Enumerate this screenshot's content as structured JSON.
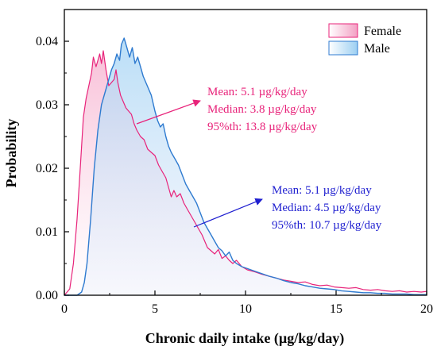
{
  "chart_data": {
    "type": "area",
    "xlabel": "Chronic daily intake (µg/kg/day)",
    "ylabel": "Probability",
    "xlim": [
      0,
      20
    ],
    "ylim": [
      0,
      0.045
    ],
    "x_ticks": [
      0,
      5,
      10,
      15,
      20
    ],
    "y_ticks": [
      0.0,
      0.01,
      0.02,
      0.03,
      0.04
    ],
    "x_tick_labels": [
      "0",
      "5",
      "10",
      "15",
      "20"
    ],
    "y_tick_labels": [
      "0.00",
      "0.01",
      "0.02",
      "0.03",
      "0.04"
    ],
    "grid": false,
    "legend_position": "top-right",
    "series": [
      {
        "name": "Female",
        "color": "#e8237a",
        "fill": "#f9c8de",
        "points": [
          [
            0.0,
            0.0
          ],
          [
            0.3,
            0.001
          ],
          [
            0.5,
            0.005
          ],
          [
            0.7,
            0.012
          ],
          [
            0.9,
            0.021
          ],
          [
            1.05,
            0.028
          ],
          [
            1.2,
            0.031
          ],
          [
            1.35,
            0.033
          ],
          [
            1.5,
            0.035
          ],
          [
            1.6,
            0.0375
          ],
          [
            1.75,
            0.036
          ],
          [
            1.85,
            0.037
          ],
          [
            1.95,
            0.038
          ],
          [
            2.05,
            0.0365
          ],
          [
            2.15,
            0.0385
          ],
          [
            2.3,
            0.0355
          ],
          [
            2.45,
            0.033
          ],
          [
            2.6,
            0.0335
          ],
          [
            2.75,
            0.034
          ],
          [
            2.85,
            0.0355
          ],
          [
            2.95,
            0.0335
          ],
          [
            3.1,
            0.0315
          ],
          [
            3.25,
            0.0305
          ],
          [
            3.4,
            0.0295
          ],
          [
            3.55,
            0.029
          ],
          [
            3.7,
            0.0285
          ],
          [
            3.85,
            0.027
          ],
          [
            4.0,
            0.026
          ],
          [
            4.2,
            0.025
          ],
          [
            4.4,
            0.0245
          ],
          [
            4.6,
            0.023
          ],
          [
            4.8,
            0.0225
          ],
          [
            5.0,
            0.022
          ],
          [
            5.2,
            0.0205
          ],
          [
            5.4,
            0.0195
          ],
          [
            5.6,
            0.0185
          ],
          [
            5.75,
            0.017
          ],
          [
            5.9,
            0.0155
          ],
          [
            6.05,
            0.0165
          ],
          [
            6.2,
            0.0155
          ],
          [
            6.4,
            0.016
          ],
          [
            6.6,
            0.0145
          ],
          [
            6.8,
            0.0135
          ],
          [
            7.0,
            0.0125
          ],
          [
            7.2,
            0.0115
          ],
          [
            7.4,
            0.0105
          ],
          [
            7.6,
            0.0095
          ],
          [
            7.75,
            0.0085
          ],
          [
            7.9,
            0.0075
          ],
          [
            8.1,
            0.007
          ],
          [
            8.3,
            0.0065
          ],
          [
            8.5,
            0.0072
          ],
          [
            8.7,
            0.0058
          ],
          [
            8.9,
            0.0062
          ],
          [
            9.1,
            0.0055
          ],
          [
            9.3,
            0.005
          ],
          [
            9.5,
            0.0055
          ],
          [
            9.8,
            0.0045
          ],
          [
            10.1,
            0.004
          ],
          [
            10.5,
            0.0037
          ],
          [
            10.9,
            0.0033
          ],
          [
            11.3,
            0.003
          ],
          [
            11.7,
            0.0027
          ],
          [
            12.1,
            0.0024
          ],
          [
            12.5,
            0.0022
          ],
          [
            12.9,
            0.002
          ],
          [
            13.3,
            0.0021
          ],
          [
            13.7,
            0.0017
          ],
          [
            14.1,
            0.0015
          ],
          [
            14.5,
            0.0016
          ],
          [
            14.9,
            0.0013
          ],
          [
            15.3,
            0.0012
          ],
          [
            15.7,
            0.0011
          ],
          [
            16.1,
            0.0012
          ],
          [
            16.5,
            0.0009
          ],
          [
            16.9,
            0.0008
          ],
          [
            17.3,
            0.0009
          ],
          [
            17.7,
            0.0007
          ],
          [
            18.1,
            0.0006
          ],
          [
            18.5,
            0.0007
          ],
          [
            18.9,
            0.0005
          ],
          [
            19.3,
            0.0006
          ],
          [
            19.7,
            0.0005
          ],
          [
            20.0,
            0.0006
          ]
        ]
      },
      {
        "name": "Male",
        "color": "#2f7bd0",
        "fill": "#bfe0f7",
        "points": [
          [
            0.0,
            0.0
          ],
          [
            0.7,
            0.0
          ],
          [
            0.95,
            0.0005
          ],
          [
            1.1,
            0.002
          ],
          [
            1.25,
            0.005
          ],
          [
            1.45,
            0.012
          ],
          [
            1.65,
            0.02
          ],
          [
            1.85,
            0.026
          ],
          [
            2.05,
            0.03
          ],
          [
            2.25,
            0.032
          ],
          [
            2.45,
            0.034
          ],
          [
            2.6,
            0.0355
          ],
          [
            2.75,
            0.0365
          ],
          [
            2.9,
            0.038
          ],
          [
            3.05,
            0.037
          ],
          [
            3.15,
            0.0395
          ],
          [
            3.3,
            0.0405
          ],
          [
            3.45,
            0.039
          ],
          [
            3.6,
            0.0375
          ],
          [
            3.75,
            0.039
          ],
          [
            3.9,
            0.0365
          ],
          [
            4.05,
            0.0375
          ],
          [
            4.2,
            0.036
          ],
          [
            4.35,
            0.0345
          ],
          [
            4.5,
            0.0335
          ],
          [
            4.65,
            0.0325
          ],
          [
            4.8,
            0.0315
          ],
          [
            5.0,
            0.029
          ],
          [
            5.15,
            0.0275
          ],
          [
            5.3,
            0.0265
          ],
          [
            5.45,
            0.027
          ],
          [
            5.6,
            0.025
          ],
          [
            5.75,
            0.0235
          ],
          [
            5.9,
            0.0225
          ],
          [
            6.1,
            0.0215
          ],
          [
            6.3,
            0.0205
          ],
          [
            6.5,
            0.019
          ],
          [
            6.7,
            0.0175
          ],
          [
            6.9,
            0.0165
          ],
          [
            7.1,
            0.0155
          ],
          [
            7.3,
            0.0145
          ],
          [
            7.5,
            0.013
          ],
          [
            7.7,
            0.0115
          ],
          [
            7.9,
            0.0105
          ],
          [
            8.1,
            0.0095
          ],
          [
            8.3,
            0.0085
          ],
          [
            8.5,
            0.0075
          ],
          [
            8.7,
            0.007
          ],
          [
            8.9,
            0.0062
          ],
          [
            9.1,
            0.0068
          ],
          [
            9.3,
            0.0055
          ],
          [
            9.5,
            0.005
          ],
          [
            9.8,
            0.0045
          ],
          [
            10.1,
            0.0042
          ],
          [
            10.5,
            0.0038
          ],
          [
            10.9,
            0.0034
          ],
          [
            11.3,
            0.003
          ],
          [
            11.7,
            0.0027
          ],
          [
            12.1,
            0.0023
          ],
          [
            12.5,
            0.002
          ],
          [
            12.9,
            0.0018
          ],
          [
            13.3,
            0.0015
          ],
          [
            13.7,
            0.0013
          ],
          [
            14.1,
            0.0011
          ],
          [
            14.5,
            0.001
          ],
          [
            14.9,
            0.0009
          ],
          [
            15.3,
            0.0007
          ],
          [
            15.7,
            0.0006
          ],
          [
            16.1,
            0.0005
          ],
          [
            16.5,
            0.0004
          ],
          [
            16.9,
            0.0004
          ],
          [
            17.3,
            0.0003
          ],
          [
            17.7,
            0.0003
          ],
          [
            18.1,
            0.0002
          ],
          [
            18.5,
            0.0002
          ],
          [
            18.9,
            0.0002
          ],
          [
            19.3,
            0.0001
          ],
          [
            19.7,
            0.0001
          ],
          [
            20.0,
            0.0001
          ]
        ]
      }
    ],
    "annotations": [
      {
        "series": "Female",
        "color": "#e8237a",
        "lines": [
          "Mean: 5.1 µg/kg/day",
          "Median: 3.8 µg/kg/day",
          "95%th: 13.8 µg/kg/day"
        ]
      },
      {
        "series": "Male",
        "color": "#1f1fd0",
        "lines": [
          "Mean: 5.1 µg/kg/day",
          "Median: 4.5 µg/kg/day",
          "95%th: 10.7 µg/kg/day"
        ]
      }
    ]
  }
}
